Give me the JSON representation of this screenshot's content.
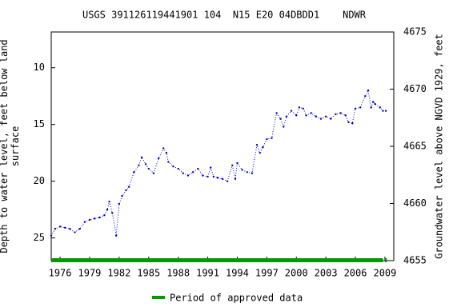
{
  "chart_data": {
    "type": "line",
    "title": "USGS 391126119441901 104  N15 E20 04DBDD1    NDWR",
    "y_label": "Depth to water level, feet below land\nsurface",
    "y2_label": "Groundwater level above NGVD 1929, feet",
    "xlim": [
      1975.1,
      2009.9
    ],
    "xticks": [
      1976,
      1979,
      1982,
      1985,
      1988,
      1991,
      1994,
      1997,
      2000,
      2003,
      2006,
      2009
    ],
    "ylim": [
      27,
      6.85
    ],
    "yticks": [
      10,
      15,
      20,
      25
    ],
    "y2lim": [
      4655,
      4675
    ],
    "y2ticks": [
      4655,
      4660,
      4665,
      4670,
      4675
    ],
    "series": [
      {
        "color": "#0000cc",
        "x": [
          1975.1,
          1975.5,
          1976,
          1976.5,
          1977,
          1977.5,
          1978,
          1978.5,
          1979,
          1979.5,
          1980,
          1980.5,
          1980.8,
          1981,
          1981.3,
          1981.7,
          1982,
          1982.3,
          1982.7,
          1983,
          1983.5,
          1984,
          1984.3,
          1984.7,
          1985,
          1985.5,
          1986,
          1986.5,
          1986.8,
          1987,
          1987.5,
          1988,
          1988.5,
          1989,
          1989.5,
          1990,
          1990.5,
          1991,
          1991.3,
          1991.6,
          1992,
          1992.5,
          1993,
          1993.5,
          1993.8,
          1994,
          1994.5,
          1995,
          1995.5,
          1996,
          1996.3,
          1996.6,
          1997,
          1997.5,
          1998,
          1998.4,
          1998.7,
          1999,
          1999.5,
          2000,
          2000.3,
          2000.7,
          2001,
          2001.5,
          2002,
          2002.5,
          2003,
          2003.5,
          2004,
          2004.5,
          2005,
          2005.3,
          2005.7,
          2006,
          2006.5,
          2007,
          2007.3,
          2007.6,
          2007.8,
          2008,
          2008.5,
          2008.8,
          2009.1
        ],
        "values": [
          24.8,
          24.2,
          24.0,
          24.1,
          24.2,
          24.5,
          24.2,
          23.6,
          23.4,
          23.3,
          23.2,
          23.0,
          22.5,
          21.8,
          22.8,
          24.8,
          22.0,
          21.3,
          20.8,
          20.5,
          19.2,
          18.6,
          17.9,
          18.5,
          18.9,
          19.3,
          18.0,
          17.1,
          17.5,
          18.3,
          18.7,
          18.9,
          19.3,
          19.5,
          19.2,
          18.9,
          19.5,
          19.6,
          18.8,
          19.6,
          19.7,
          19.8,
          20.0,
          18.6,
          19.8,
          18.4,
          19.0,
          19.2,
          19.3,
          16.8,
          17.5,
          17.0,
          16.3,
          16.2,
          14.0,
          14.5,
          15.2,
          14.3,
          13.8,
          14.2,
          13.5,
          13.6,
          14.2,
          14.0,
          14.3,
          14.5,
          14.3,
          14.5,
          14.1,
          14.0,
          14.2,
          14.8,
          14.9,
          13.6,
          13.5,
          12.5,
          12.0,
          13.5,
          13.0,
          13.2,
          13.5,
          13.8,
          13.8
        ]
      }
    ],
    "approved": {
      "name": "Period of approved data",
      "color": "#009900",
      "periods": [
        [
          1975.1,
          2008.8
        ],
        [
          2009,
          2009.2
        ]
      ]
    }
  }
}
